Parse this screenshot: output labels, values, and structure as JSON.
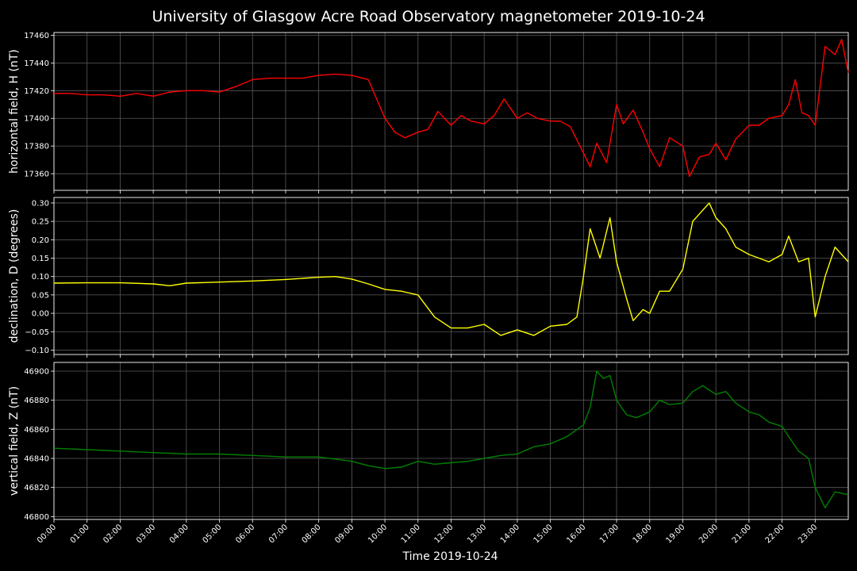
{
  "chart_data": {
    "type": "line",
    "title": "University of Glasgow Acre Road Observatory magnetometer 2019-10-24",
    "xlabel": "Time 2019-10-24",
    "x_ticks": [
      "00:00",
      "01:00",
      "02:00",
      "03:00",
      "04:00",
      "05:00",
      "06:00",
      "07:00",
      "08:00",
      "09:00",
      "10:00",
      "11:00",
      "12:00",
      "13:00",
      "14:00",
      "15:00",
      "16:00",
      "17:00",
      "18:00",
      "19:00",
      "20:00",
      "21:00",
      "22:00",
      "23:00"
    ],
    "x_range_hours": [
      0,
      24
    ],
    "grid": true,
    "panels": [
      {
        "ylabel": "horizontal field, H (nT)",
        "ylim": [
          17348,
          17462
        ],
        "yticks": [
          17360,
          17380,
          17400,
          17420,
          17440,
          17460
        ],
        "ytick_labels": [
          "17360",
          "17380",
          "17400",
          "17420",
          "17440",
          "17460"
        ],
        "color": "#ff0000",
        "x": [
          0,
          0.5,
          1,
          1.5,
          2,
          2.5,
          3,
          3.5,
          4,
          4.5,
          5,
          5.5,
          6,
          6.5,
          7,
          7.5,
          8,
          8.5,
          9,
          9.5,
          10,
          10.3,
          10.6,
          11,
          11.3,
          11.6,
          12,
          12.3,
          12.6,
          13,
          13.3,
          13.6,
          14,
          14.3,
          14.6,
          15,
          15.3,
          15.6,
          16,
          16.2,
          16.4,
          16.7,
          17,
          17.2,
          17.5,
          17.8,
          18,
          18.3,
          18.6,
          19,
          19.2,
          19.5,
          19.8,
          20,
          20.3,
          20.6,
          21,
          21.3,
          21.6,
          22,
          22.2,
          22.4,
          22.6,
          22.8,
          23,
          23.3,
          23.6,
          23.8,
          24
        ],
        "y": [
          17418,
          17418,
          17417,
          17417,
          17416,
          17418,
          17416,
          17419,
          17420,
          17420,
          17419,
          17423,
          17428,
          17429,
          17429,
          17429,
          17431,
          17432,
          17431,
          17428,
          17400,
          17390,
          17386,
          17390,
          17392,
          17405,
          17395,
          17402,
          17398,
          17396,
          17402,
          17414,
          17400,
          17404,
          17400,
          17398,
          17398,
          17394,
          17375,
          17365,
          17382,
          17368,
          17410,
          17396,
          17406,
          17390,
          17378,
          17365,
          17386,
          17380,
          17358,
          17372,
          17374,
          17382,
          17370,
          17385,
          17395,
          17395,
          17400,
          17402,
          17410,
          17428,
          17404,
          17402,
          17395,
          17452,
          17446,
          17457,
          17433
        ]
      },
      {
        "ylabel": "declination, D (degrees)",
        "ylim": [
          -0.112,
          0.315
        ],
        "yticks": [
          -0.1,
          -0.05,
          0.0,
          0.05,
          0.1,
          0.15,
          0.2,
          0.25,
          0.3
        ],
        "ytick_labels": [
          "−0.10",
          "−0.05",
          "0.00",
          "0.05",
          "0.10",
          "0.15",
          "0.20",
          "0.25",
          "0.30"
        ],
        "color": "#ffff00",
        "x": [
          0,
          1,
          2,
          3,
          3.5,
          4,
          5,
          6,
          7,
          8,
          8.5,
          9,
          9.5,
          10,
          10.5,
          11,
          11.5,
          12,
          12.5,
          13,
          13.5,
          14,
          14.5,
          15,
          15.5,
          15.8,
          16,
          16.2,
          16.5,
          16.8,
          17,
          17.3,
          17.5,
          17.8,
          18,
          18.3,
          18.6,
          19,
          19.3,
          19.6,
          19.8,
          20,
          20.3,
          20.6,
          21,
          21.3,
          21.6,
          22,
          22.2,
          22.5,
          22.8,
          23,
          23.3,
          23.6,
          24
        ],
        "y": [
          0.082,
          0.083,
          0.083,
          0.08,
          0.075,
          0.082,
          0.085,
          0.088,
          0.092,
          0.098,
          0.1,
          0.093,
          0.08,
          0.065,
          0.06,
          0.05,
          -0.01,
          -0.04,
          -0.04,
          -0.03,
          -0.06,
          -0.045,
          -0.06,
          -0.035,
          -0.03,
          -0.01,
          0.1,
          0.23,
          0.15,
          0.26,
          0.14,
          0.04,
          -0.02,
          0.01,
          0.0,
          0.06,
          0.06,
          0.12,
          0.25,
          0.28,
          0.3,
          0.26,
          0.23,
          0.18,
          0.16,
          0.15,
          0.14,
          0.16,
          0.21,
          0.14,
          0.15,
          -0.01,
          0.1,
          0.18,
          0.14
        ]
      },
      {
        "ylabel": "vertical field, Z (nT)",
        "ylim": [
          46798,
          46906
        ],
        "yticks": [
          46800,
          46820,
          46840,
          46860,
          46880,
          46900
        ],
        "ytick_labels": [
          "46800",
          "46820",
          "46840",
          "46860",
          "46880",
          "46900"
        ],
        "color": "#008000",
        "x": [
          0,
          1,
          2,
          3,
          4,
          5,
          6,
          7,
          8,
          9,
          9.5,
          10,
          10.5,
          11,
          11.5,
          12,
          12.5,
          13,
          13.5,
          14,
          14.5,
          15,
          15.5,
          16,
          16.2,
          16.4,
          16.6,
          16.8,
          17,
          17.3,
          17.6,
          18,
          18.3,
          18.6,
          19,
          19.3,
          19.6,
          20,
          20.3,
          20.6,
          21,
          21.3,
          21.6,
          22,
          22.2,
          22.5,
          22.8,
          23,
          23.3,
          23.6,
          24
        ],
        "y": [
          46847,
          46846,
          46845,
          46844,
          46843,
          46843,
          46842,
          46841,
          46841,
          46838,
          46835,
          46833,
          46834,
          46838,
          46836,
          46837,
          46838,
          46840,
          46842,
          46843,
          46848,
          46850,
          46855,
          46863,
          46875,
          46900,
          46895,
          46897,
          46880,
          46870,
          46868,
          46872,
          46880,
          46877,
          46878,
          46886,
          46890,
          46884,
          46886,
          46878,
          46872,
          46870,
          46865,
          46862,
          46855,
          46845,
          46840,
          46820,
          46806,
          46817,
          46815
        ]
      }
    ]
  }
}
